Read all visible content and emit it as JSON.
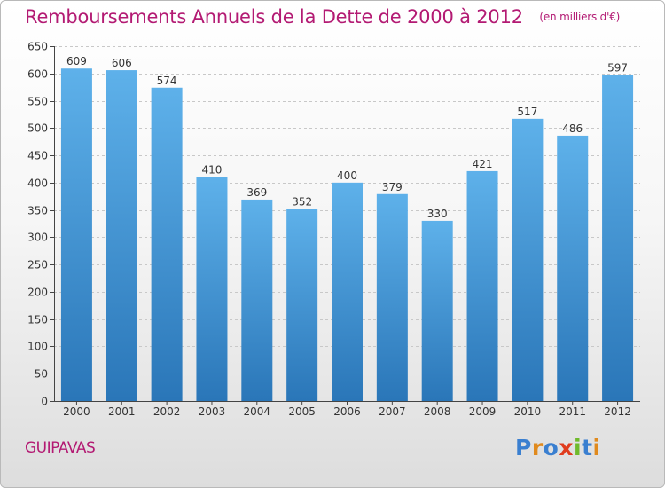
{
  "title": "Remboursements Annuels de la Dette de 2000 à 2012",
  "unit_note": "(en milliers d'€)",
  "city": "GUIPAVAS",
  "brand": {
    "text": "Proxiti",
    "letter_colors": [
      "#3a7fd0",
      "#e08a1e",
      "#3a7fd0",
      "#e03c1e",
      "#6fba2c",
      "#3a7fd0",
      "#e08a1e"
    ]
  },
  "colors": {
    "accent": "#b31a73",
    "bar_top": "#5eb1ea",
    "bar_bottom": "#2a76b8",
    "grid": "#c8c8c8",
    "axis": "#444444"
  },
  "chart_data": {
    "type": "bar",
    "categories": [
      "2000",
      "2001",
      "2002",
      "2003",
      "2004",
      "2005",
      "2006",
      "2007",
      "2008",
      "2009",
      "2010",
      "2011",
      "2012"
    ],
    "values": [
      609,
      606,
      574,
      410,
      369,
      352,
      400,
      379,
      330,
      421,
      517,
      486,
      597
    ],
    "title": "Remboursements Annuels de la Dette de 2000 à 2012",
    "xlabel": "",
    "ylabel": "",
    "ylim": [
      0,
      650
    ],
    "yticks": [
      0,
      50,
      100,
      150,
      200,
      250,
      300,
      350,
      400,
      450,
      500,
      550,
      600,
      650
    ],
    "grid": true,
    "data_labels": true
  }
}
